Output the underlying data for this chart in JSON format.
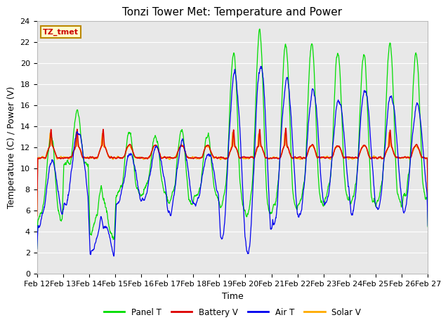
{
  "title": "Tonzi Tower Met: Temperature and Power",
  "xlabel": "Time",
  "ylabel": "Temperature (C) / Power (V)",
  "ylim": [
    0,
    24
  ],
  "yticks": [
    0,
    2,
    4,
    6,
    8,
    10,
    12,
    14,
    16,
    18,
    20,
    22,
    24
  ],
  "xtick_labels": [
    "Feb 12",
    "Feb 13",
    "Feb 14",
    "Feb 15",
    "Feb 16",
    "Feb 17",
    "Feb 18",
    "Feb 19",
    "Feb 20",
    "Feb 21",
    "Feb 22",
    "Feb 23",
    "Feb 24",
    "Feb 25",
    "Feb 26",
    "Feb 27"
  ],
  "colors": {
    "panel_t": "#00dd00",
    "battery_v": "#dd0000",
    "air_t": "#0000ee",
    "solar_v": "#ffaa00"
  },
  "legend_labels": [
    "Panel T",
    "Battery V",
    "Air T",
    "Solar V"
  ],
  "annotation_box": "TZ_tmet",
  "plot_bg_color": "#e8e8e8",
  "title_fontsize": 11,
  "axis_fontsize": 9,
  "tick_fontsize": 8,
  "n_points": 1440
}
